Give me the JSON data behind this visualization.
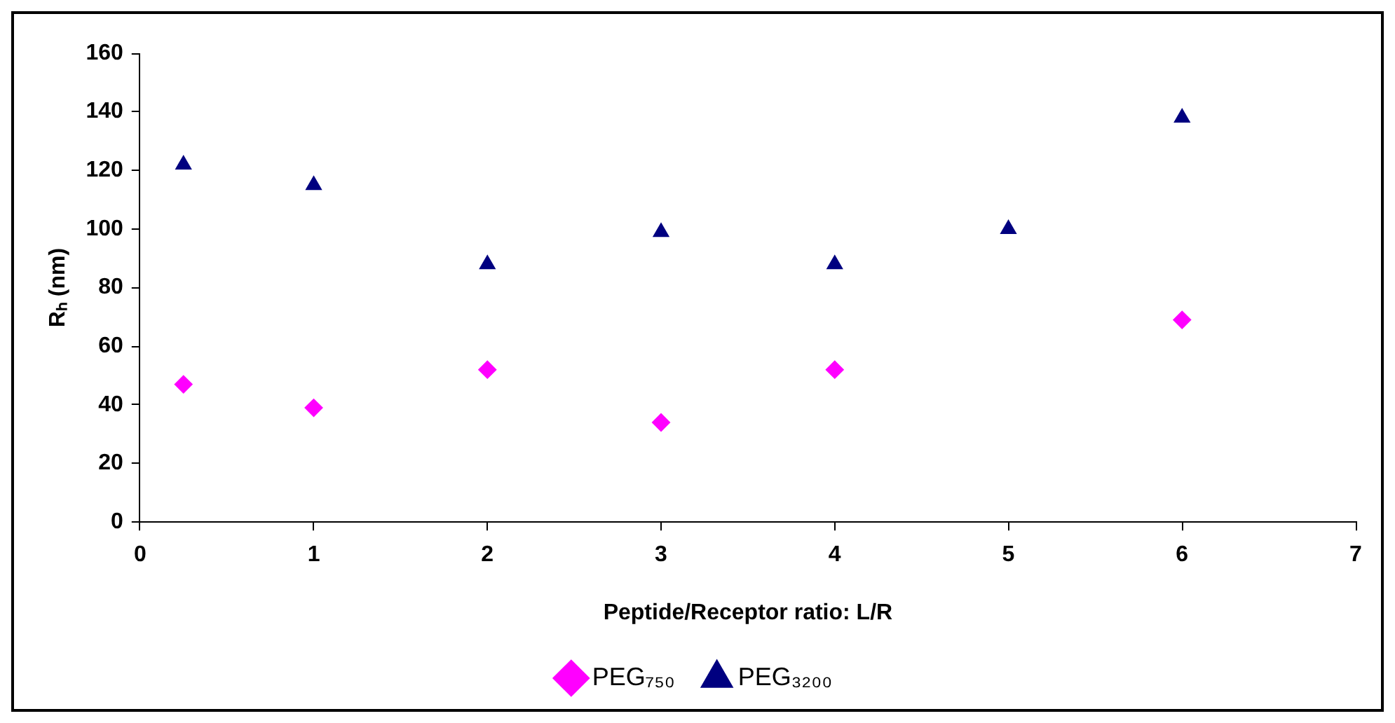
{
  "chart_data": {
    "type": "scatter",
    "xlabel": "Peptide/Receptor ratio: L/R",
    "ylabel": "Rₕ (nm)",
    "xlim": [
      0,
      7
    ],
    "xticks": [
      0,
      1,
      2,
      3,
      4,
      5,
      6,
      7
    ],
    "ylim": [
      0,
      160
    ],
    "yticks": [
      0,
      20,
      40,
      60,
      80,
      100,
      120,
      140,
      160
    ],
    "grid": false,
    "legend": "bottom",
    "series": [
      {
        "name": "PEG₇₅₀",
        "color": "#ff00ff",
        "marker": "diamond",
        "x": [
          0.25,
          1,
          2,
          3,
          4,
          6
        ],
        "values": [
          47,
          39,
          52,
          34,
          52,
          69
        ]
      },
      {
        "name": "PEG₃₂₀₀",
        "color": "#000080",
        "marker": "triangle",
        "x": [
          0.25,
          1,
          2,
          3,
          4,
          5,
          6
        ],
        "values": [
          122,
          115,
          88,
          99,
          88,
          100,
          138
        ]
      }
    ]
  }
}
